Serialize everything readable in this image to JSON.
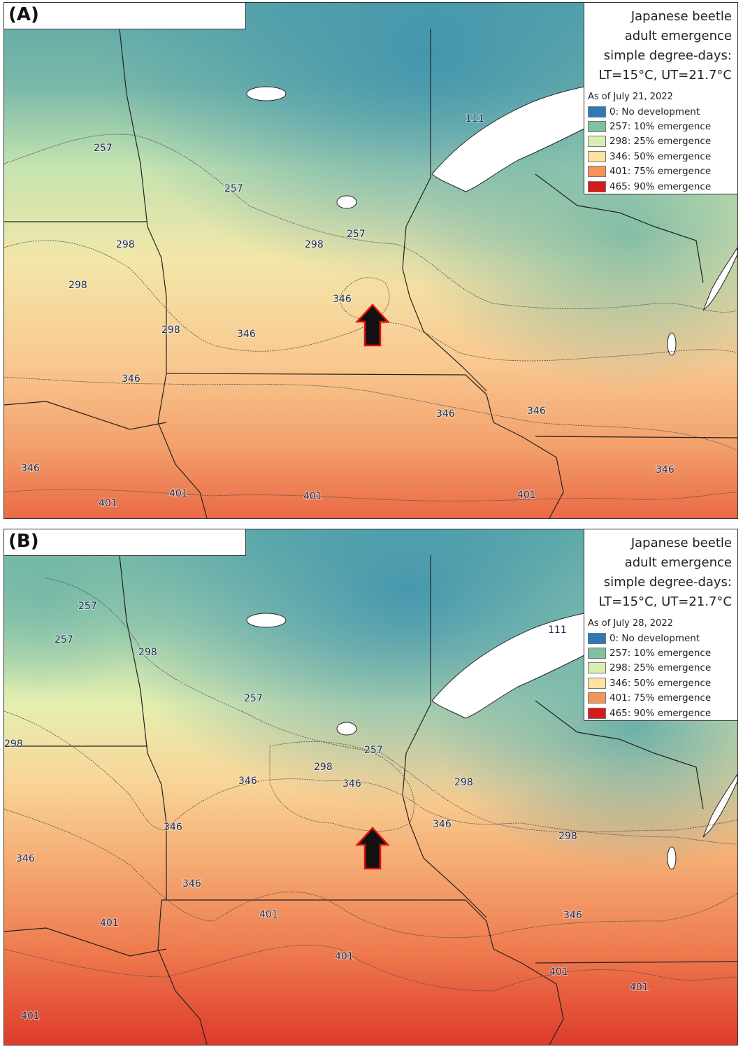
{
  "panels": [
    {
      "label": "(A)",
      "legend": {
        "title_lines": [
          "Japanese beetle",
          "adult emergence",
          "simple degree-days:",
          "LT=15°C, UT=21.7°C"
        ],
        "date": "As of July 21, 2022",
        "items": [
          {
            "label": "0: No development",
            "color": "#2c7bb6"
          },
          {
            "label": "257: 10% emergence",
            "color": "#7fc2a0"
          },
          {
            "label": "298: 25% emergence",
            "color": "#d9eeb0"
          },
          {
            "label": "346: 50% emergence",
            "color": "#fde3a2"
          },
          {
            "label": "401: 75% emergence",
            "color": "#f4935a"
          },
          {
            "label": "465: 90% emergence",
            "color": "#d7191c"
          }
        ]
      },
      "contour_labels": [
        "111",
        "257",
        "257",
        "257",
        "298",
        "298",
        "298",
        "298",
        "346",
        "346",
        "346",
        "346",
        "346",
        "346",
        "346",
        "401",
        "401",
        "401",
        "401"
      ]
    },
    {
      "label": "(B)",
      "legend": {
        "title_lines": [
          "Japanese beetle",
          "adult emergence",
          "simple degree-days:",
          "LT=15°C, UT=21.7°C"
        ],
        "date": "As of July 28, 2022",
        "items": [
          {
            "label": "0: No development",
            "color": "#2c7bb6"
          },
          {
            "label": "257: 10% emergence",
            "color": "#7fc2a0"
          },
          {
            "label": "298: 25% emergence",
            "color": "#d9eeb0"
          },
          {
            "label": "346: 50% emergence",
            "color": "#fde3a2"
          },
          {
            "label": "401: 75% emergence",
            "color": "#f4935a"
          },
          {
            "label": "465: 90% emergence",
            "color": "#d7191c"
          }
        ]
      },
      "contour_labels": [
        "111",
        "257",
        "257",
        "257",
        "257",
        "298",
        "298",
        "298",
        "298",
        "298",
        "346",
        "346",
        "346",
        "346",
        "346",
        "346",
        "346",
        "401",
        "401",
        "401",
        "401",
        "401",
        "401"
      ]
    }
  ]
}
